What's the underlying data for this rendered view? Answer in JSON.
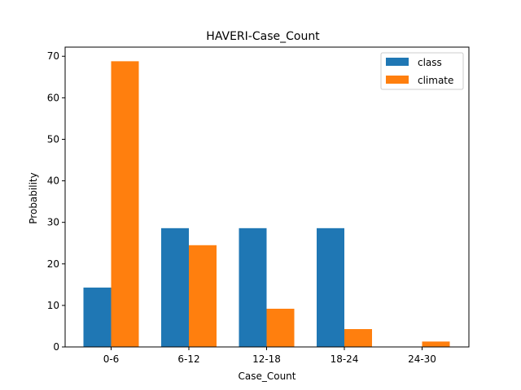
{
  "chart_data": {
    "type": "bar",
    "title": "HAVERI-Case_Count",
    "xlabel": "Case_Count",
    "ylabel": "Probability",
    "categories": [
      "0-6",
      "6-12",
      "12-18",
      "18-24",
      "24-30"
    ],
    "series": [
      {
        "name": "class",
        "color": "#1f77b4",
        "values": [
          14.3,
          28.6,
          28.6,
          28.6,
          0
        ]
      },
      {
        "name": "climate",
        "color": "#ff7f0e",
        "values": [
          68.8,
          24.5,
          9.2,
          4.3,
          1.3
        ]
      }
    ],
    "ylim": [
      0,
      72.2
    ],
    "yticks": [
      0,
      10,
      20,
      30,
      40,
      50,
      60,
      70
    ],
    "legend": "top-right",
    "grid": false
  }
}
